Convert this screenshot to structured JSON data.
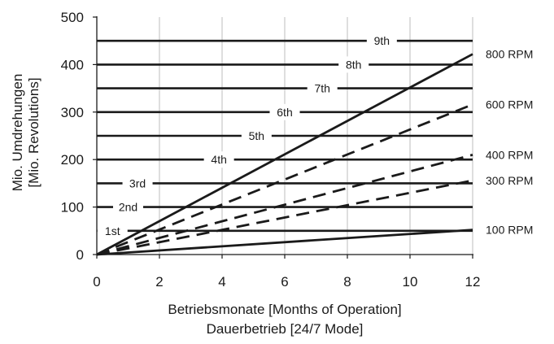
{
  "chart_data": {
    "type": "line",
    "xlabel": "Betriebsmonate [Months of Operation]",
    "xlabel2": "Dauerbetrieb [24/7 Mode]",
    "ylabel": "Mio. Umdrehungen",
    "ylabel2": "[Mio. Revolutions]",
    "xlim": [
      0,
      12
    ],
    "ylim": [
      0,
      500
    ],
    "x_ticks": [
      0,
      2,
      4,
      6,
      8,
      10,
      12
    ],
    "y_ticks": [
      0,
      100,
      200,
      300,
      400,
      500
    ],
    "grid": "vertical",
    "series": [
      {
        "name": "100 RPM",
        "style": "solid",
        "x": [
          0,
          12
        ],
        "y": [
          0,
          52
        ]
      },
      {
        "name": "300 RPM",
        "style": "dashed",
        "x": [
          0,
          12
        ],
        "y": [
          0,
          156
        ]
      },
      {
        "name": "400 RPM",
        "style": "dashed",
        "x": [
          0,
          12
        ],
        "y": [
          0,
          210
        ]
      },
      {
        "name": "600 RPM",
        "style": "dashed",
        "x": [
          0,
          12
        ],
        "y": [
          0,
          316
        ]
      },
      {
        "name": "800 RPM",
        "style": "solid",
        "x": [
          0,
          12
        ],
        "y": [
          0,
          422
        ]
      }
    ],
    "levels": [
      {
        "label": "1st",
        "y": 50,
        "label_x": 0.5
      },
      {
        "label": "2nd",
        "y": 100,
        "label_x": 1.0
      },
      {
        "label": "3rd",
        "y": 150,
        "label_x": 1.3
      },
      {
        "label": "4th",
        "y": 200,
        "label_x": 3.9
      },
      {
        "label": "5th",
        "y": 250,
        "label_x": 5.1
      },
      {
        "label": "6th",
        "y": 300,
        "label_x": 6.0
      },
      {
        "label": "7th",
        "y": 350,
        "label_x": 7.2
      },
      {
        "label": "8th",
        "y": 400,
        "label_x": 8.2
      },
      {
        "label": "9th",
        "y": 450,
        "label_x": 9.1
      }
    ],
    "colors": {
      "line": "#1a1a1a",
      "grid": "#bdbdbd",
      "text": "#1a1a1a"
    }
  }
}
